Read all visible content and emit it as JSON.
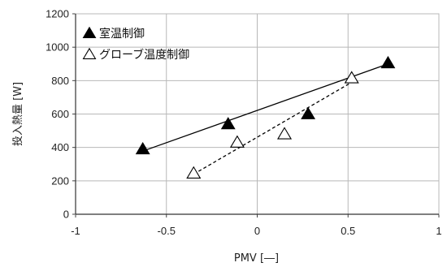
{
  "chart_data": {
    "type": "scatter",
    "xlabel": "PMV [―]",
    "ylabel": "投入熱量 [W]",
    "xlim": [
      -1,
      1
    ],
    "ylim": [
      0,
      1200
    ],
    "x_ticks": [
      -1,
      -0.5,
      0,
      0.5,
      1
    ],
    "x_tick_labels": [
      "-1",
      "-0.5",
      "0",
      "0.5",
      "1"
    ],
    "y_ticks": [
      0,
      200,
      400,
      600,
      800,
      1000,
      1200
    ],
    "y_tick_labels": [
      "0",
      "200",
      "400",
      "600",
      "800",
      "1000",
      "1200"
    ],
    "grid": true,
    "legend_position": "top-left",
    "series": [
      {
        "name": "室温制御",
        "marker": "filled-triangle",
        "color": "#000000",
        "points": [
          {
            "x": -0.63,
            "y": 390
          },
          {
            "x": -0.16,
            "y": 540
          },
          {
            "x": 0.28,
            "y": 600
          },
          {
            "x": 0.72,
            "y": 905
          }
        ],
        "trendline": {
          "style": "solid",
          "from": {
            "x": -0.63,
            "y": 378
          },
          "to": {
            "x": 0.72,
            "y": 900
          }
        }
      },
      {
        "name": "グローブ温度制御",
        "marker": "open-triangle",
        "color": "#000000",
        "points": [
          {
            "x": -0.35,
            "y": 245
          },
          {
            "x": -0.11,
            "y": 430
          },
          {
            "x": 0.15,
            "y": 480
          },
          {
            "x": 0.52,
            "y": 815
          }
        ],
        "trendline": {
          "style": "dashed",
          "from": {
            "x": -0.35,
            "y": 240
          },
          "to": {
            "x": 0.52,
            "y": 790
          }
        }
      }
    ]
  }
}
